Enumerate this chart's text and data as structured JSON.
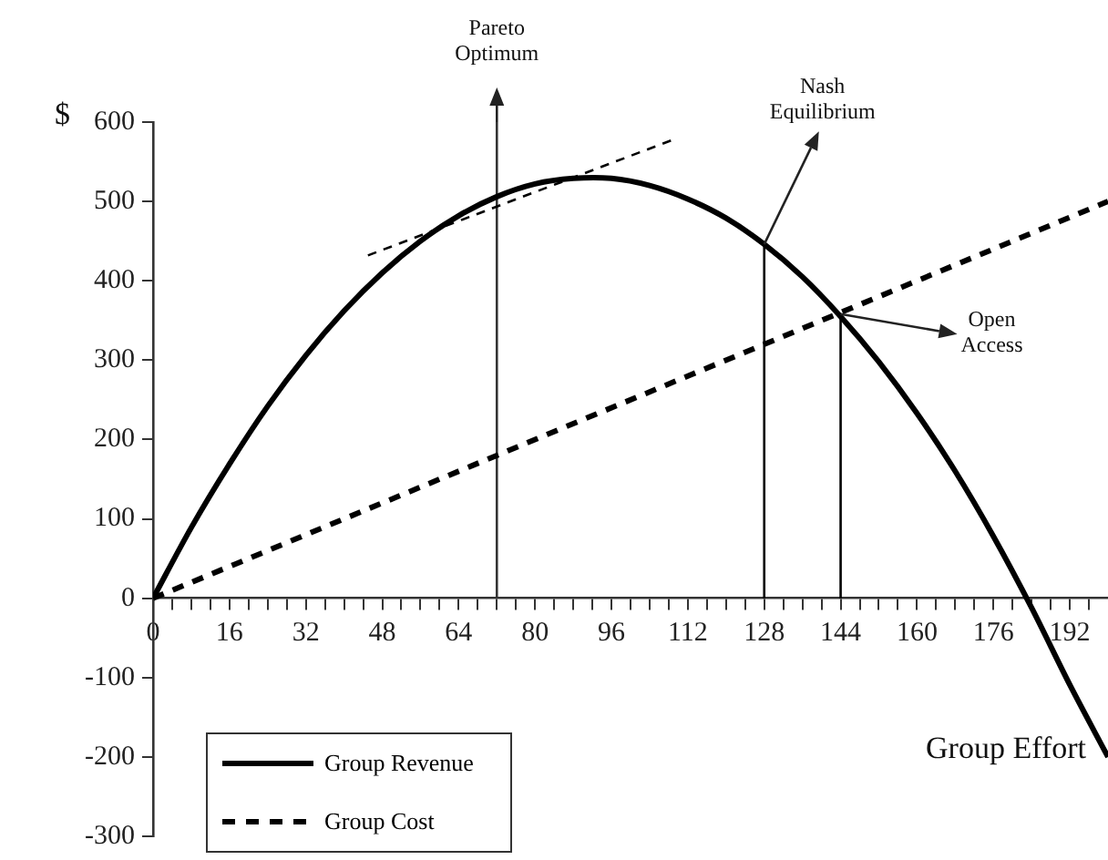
{
  "chart_data": {
    "type": "line",
    "xlabel": "Group Effort",
    "ylabel": "$",
    "legend": "bottom left",
    "marker": "none",
    "xlim": [
      0,
      200
    ],
    "ylim": [
      -300,
      600
    ],
    "yticks": [
      -300,
      -200,
      -100,
      0,
      100,
      200,
      300,
      400,
      500,
      600
    ],
    "xticks": [
      0,
      {
        "value": 4,
        "label": null
      },
      {
        "value": 8,
        "label": null
      },
      {
        "value": 12,
        "label": null
      },
      16,
      {
        "value": 20,
        "label": null
      },
      {
        "value": 24,
        "label": null
      },
      {
        "value": 28,
        "label": null
      },
      32,
      {
        "value": 36,
        "label": null
      },
      {
        "value": 40,
        "label": null
      },
      {
        "value": 44,
        "label": null
      },
      48,
      {
        "value": 52,
        "label": null
      },
      {
        "value": 56,
        "label": null
      },
      {
        "value": 60,
        "label": null
      },
      64,
      {
        "value": 68,
        "label": null
      },
      {
        "value": 72,
        "label": null
      },
      {
        "value": 76,
        "label": null
      },
      80,
      {
        "value": 84,
        "label": null
      },
      {
        "value": 88,
        "label": null
      },
      {
        "value": 92,
        "label": null
      },
      96,
      {
        "value": 100,
        "label": null
      },
      {
        "value": 104,
        "label": null
      },
      {
        "value": 108,
        "label": null
      },
      112,
      {
        "value": 116,
        "label": null
      },
      {
        "value": 120,
        "label": null
      },
      {
        "value": 124,
        "label": null
      },
      128,
      {
        "value": 132,
        "label": null
      },
      {
        "value": 136,
        "label": null
      },
      {
        "value": 140,
        "label": null
      },
      144,
      {
        "value": 148,
        "label": null
      },
      {
        "value": 152,
        "label": null
      },
      {
        "value": 156,
        "label": null
      },
      160,
      {
        "value": 164,
        "label": null
      },
      {
        "value": 168,
        "label": null
      },
      {
        "value": 172,
        "label": null
      },
      176,
      {
        "value": 180,
        "label": null
      },
      {
        "value": 184,
        "label": null
      },
      {
        "value": 188,
        "label": null
      },
      192,
      {
        "value": 196,
        "label": null
      }
    ],
    "series": [
      {
        "name": "Group Revenue",
        "color": "#000000",
        "line_style": "solid",
        "x": [
          0,
          8,
          16,
          24,
          32,
          40,
          48,
          56,
          64,
          72,
          80,
          88,
          96,
          104,
          112,
          120,
          128,
          136,
          144,
          152,
          160,
          168,
          176,
          184,
          192,
          200
        ],
        "values": [
          0,
          89,
          169,
          242,
          306,
          362,
          410,
          450,
          482,
          506,
          522,
          529,
          529,
          520,
          503,
          479,
          446,
          405,
          355,
          298,
          233,
          160,
          78,
          -12,
          -109,
          -200
        ]
      },
      {
        "name": "Group Cost",
        "color": "#000000",
        "line_style": "dashed",
        "x": [
          0,
          200
        ],
        "values": [
          0,
          500
        ]
      },
      {
        "color": "#000000",
        "line_style": "dashed",
        "x": [
          45,
          109
        ],
        "values": [
          432,
          578
        ]
      },
      {
        "color": "#333333",
        "line_style": "solid",
        "x": [
          72,
          72
        ],
        "values": [
          0,
          600
        ]
      },
      {
        "color": "#000000",
        "line_style": "solid",
        "x": [
          128,
          128
        ],
        "values": [
          0,
          446
        ]
      },
      {
        "color": "#000000",
        "line_style": "solid",
        "x": [
          144,
          144
        ],
        "values": [
          0,
          358
        ]
      }
    ],
    "annotations": [
      {
        "text": "Pareto Optimum",
        "x": 72,
        "y": 600
      },
      {
        "text": "Nash Equilibrium",
        "x": 128,
        "y": 446
      },
      {
        "text": "Open Access",
        "x": 144,
        "y": 358
      }
    ]
  }
}
